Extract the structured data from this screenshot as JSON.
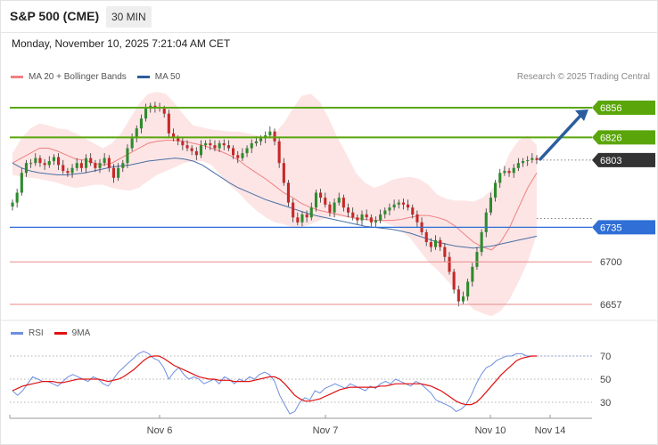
{
  "header": {
    "symbol": "S&P 500 (CME)",
    "timeframe": "30 MIN",
    "datetime": "Monday, November 10, 2025 7:21:04 AM CET"
  },
  "legend": {
    "ma20": "MA 20 + Bollinger Bands",
    "ma50": "MA 50",
    "credit": "Research © 2025 Trading Central"
  },
  "rsi_legend": {
    "rsi": "RSI",
    "ma9": "9MA"
  },
  "colors": {
    "green_level": "#5aa60a",
    "blue_level": "#2f6fd6",
    "red_level": "#e58a8a",
    "current_price": "#333333",
    "candle_up": "#2e8b2e",
    "candle_down": "#c62828",
    "ma20": "#f08080",
    "ma50": "#4a6fa5",
    "bollinger_fill": "#fde0e0",
    "arrow": "#2b5d9e",
    "rsi": "#6f8fe0",
    "rsi_ma": "#e01010"
  },
  "chart_data": [
    {
      "type": "candlestick",
      "ylim": [
        6640,
        6880
      ],
      "x_labels": [
        "Nov 6",
        "Nov 7",
        "Nov 10",
        "Nov 14"
      ],
      "price_levels": [
        {
          "value": 6856,
          "label": "6856",
          "kind": "resistance"
        },
        {
          "value": 6826,
          "label": "6826",
          "kind": "resistance"
        },
        {
          "value": 6803,
          "label": "6803",
          "kind": "current"
        },
        {
          "value": 6735,
          "label": "6735",
          "kind": "pivot"
        },
        {
          "value": 6700,
          "label": "6700",
          "kind": "support"
        },
        {
          "value": 6657,
          "label": "6657",
          "kind": "support"
        }
      ],
      "close": [
        6760,
        6770,
        6790,
        6800,
        6800,
        6805,
        6800,
        6798,
        6802,
        6806,
        6798,
        6792,
        6790,
        6795,
        6800,
        6795,
        6805,
        6800,
        6795,
        6800,
        6805,
        6795,
        6785,
        6795,
        6800,
        6815,
        6825,
        6835,
        6845,
        6855,
        6858,
        6856,
        6855,
        6850,
        6830,
        6825,
        6822,
        6818,
        6815,
        6812,
        6808,
        6818,
        6820,
        6818,
        6815,
        6820,
        6818,
        6815,
        6808,
        6805,
        6810,
        6815,
        6820,
        6822,
        6825,
        6828,
        6832,
        6822,
        6800,
        6780,
        6760,
        6745,
        6740,
        6748,
        6745,
        6755,
        6770,
        6765,
        6758,
        6750,
        6760,
        6765,
        6755,
        6750,
        6745,
        6742,
        6748,
        6745,
        6740,
        6742,
        6748,
        6752,
        6755,
        6758,
        6760,
        6758,
        6755,
        6748,
        6740,
        6730,
        6720,
        6715,
        6722,
        6715,
        6705,
        6690,
        6672,
        6660,
        6665,
        6680,
        6695,
        6710,
        6730,
        6750,
        6765,
        6780,
        6790,
        6792,
        6790,
        6795,
        6800,
        6802,
        6803,
        6805,
        6803
      ],
      "ma20": [
        6800,
        6805,
        6810,
        6815,
        6815,
        6812,
        6808,
        6804,
        6803,
        6800,
        6798,
        6800,
        6805,
        6810,
        6815,
        6820,
        6822,
        6823,
        6823,
        6822,
        6820,
        6818,
        6815,
        6812,
        6808,
        6803,
        6796,
        6790,
        6784,
        6777,
        6770,
        6765,
        6759,
        6755,
        6752,
        6750,
        6748,
        6746,
        6744,
        6743,
        6742,
        6742,
        6742,
        6743,
        6745,
        6747,
        6747,
        6745,
        6742,
        6736,
        6728,
        6720,
        6715,
        6712,
        6720,
        6735,
        6755,
        6775,
        6790
      ],
      "ma50": [
        6800,
        6795,
        6792,
        6790,
        6789,
        6788,
        6788,
        6789,
        6790,
        6792,
        6794,
        6796,
        6797,
        6798,
        6800,
        6802,
        6803,
        6804,
        6805,
        6804,
        6802,
        6798,
        6792,
        6786,
        6780,
        6775,
        6771,
        6767,
        6763,
        6760,
        6757,
        6754,
        6751,
        6748,
        6746,
        6744,
        6742,
        6740,
        6738,
        6736,
        6735,
        6734,
        6733,
        6731,
        6729,
        6726,
        6723,
        6720,
        6718,
        6716,
        6715,
        6714,
        6715,
        6716,
        6718,
        6720,
        6722,
        6724,
        6726
      ],
      "bb_upper": [
        6810,
        6825,
        6835,
        6840,
        6838,
        6835,
        6834,
        6830,
        6825,
        6820,
        6815,
        6820,
        6830,
        6845,
        6860,
        6870,
        6872,
        6870,
        6860,
        6848,
        6838,
        6836,
        6834,
        6833,
        6832,
        6832,
        6830,
        6828,
        6826,
        6830,
        6840,
        6855,
        6868,
        6870,
        6862,
        6845,
        6825,
        6808,
        6790,
        6780,
        6775,
        6778,
        6783,
        6785,
        6786,
        6784,
        6778,
        6768,
        6764,
        6762,
        6762,
        6761,
        6765,
        6773,
        6787,
        6810,
        6823,
        6828,
        6818
      ],
      "bb_lower": [
        6788,
        6786,
        6785,
        6784,
        6782,
        6780,
        6777,
        6775,
        6776,
        6778,
        6778,
        6775,
        6773,
        6772,
        6775,
        6782,
        6788,
        6792,
        6796,
        6800,
        6802,
        6802,
        6798,
        6788,
        6778,
        6770,
        6760,
        6752,
        6745,
        6740,
        6738,
        6735,
        6735,
        6738,
        6742,
        6745,
        6746,
        6745,
        6744,
        6743,
        6742,
        6740,
        6737,
        6732,
        6724,
        6712,
        6700,
        6692,
        6682,
        6672,
        6662,
        6652,
        6648,
        6645,
        6650,
        6662,
        6680,
        6700,
        6728
      ]
    },
    {
      "type": "line",
      "name": "RSI",
      "ylim": [
        15,
        85
      ],
      "ticks": [
        30,
        50,
        70
      ],
      "rsi": [
        40,
        36,
        40,
        46,
        52,
        50,
        48,
        48,
        46,
        44,
        48,
        52,
        54,
        52,
        50,
        48,
        52,
        50,
        46,
        44,
        50,
        56,
        60,
        64,
        68,
        72,
        74,
        72,
        68,
        66,
        60,
        50,
        56,
        60,
        54,
        50,
        52,
        50,
        46,
        48,
        50,
        46,
        52,
        50,
        46,
        50,
        48,
        52,
        50,
        54,
        56,
        54,
        48,
        36,
        28,
        20,
        22,
        30,
        34,
        32,
        40,
        38,
        42,
        44,
        46,
        44,
        42,
        46,
        44,
        42,
        40,
        44,
        42,
        46,
        48,
        46,
        50,
        48,
        46,
        44,
        48,
        46,
        42,
        38,
        32,
        30,
        28,
        26,
        22,
        24,
        28,
        36,
        46,
        54,
        60,
        62,
        66,
        68,
        70,
        70,
        72,
        72,
        70,
        70,
        70
      ],
      "ma9": [
        40,
        42,
        44,
        45,
        46,
        47,
        48,
        48,
        48,
        47,
        47,
        48,
        49,
        50,
        50,
        50,
        50,
        50,
        49,
        48,
        49,
        50,
        52,
        55,
        58,
        62,
        66,
        69,
        70,
        70,
        68,
        65,
        62,
        60,
        58,
        56,
        54,
        52,
        51,
        50,
        50,
        49,
        49,
        49,
        48,
        48,
        48,
        48,
        49,
        50,
        51,
        52,
        52,
        50,
        46,
        41,
        36,
        33,
        31,
        31,
        32,
        33,
        35,
        37,
        39,
        41,
        42,
        43,
        43,
        43,
        43,
        43,
        43,
        44,
        44,
        45,
        46,
        46,
        46,
        46,
        46,
        46,
        45,
        44,
        42,
        40,
        37,
        34,
        31,
        29,
        28,
        28,
        30,
        34,
        39,
        44,
        49,
        54,
        58,
        62,
        66,
        68,
        69,
        70,
        70
      ]
    }
  ]
}
